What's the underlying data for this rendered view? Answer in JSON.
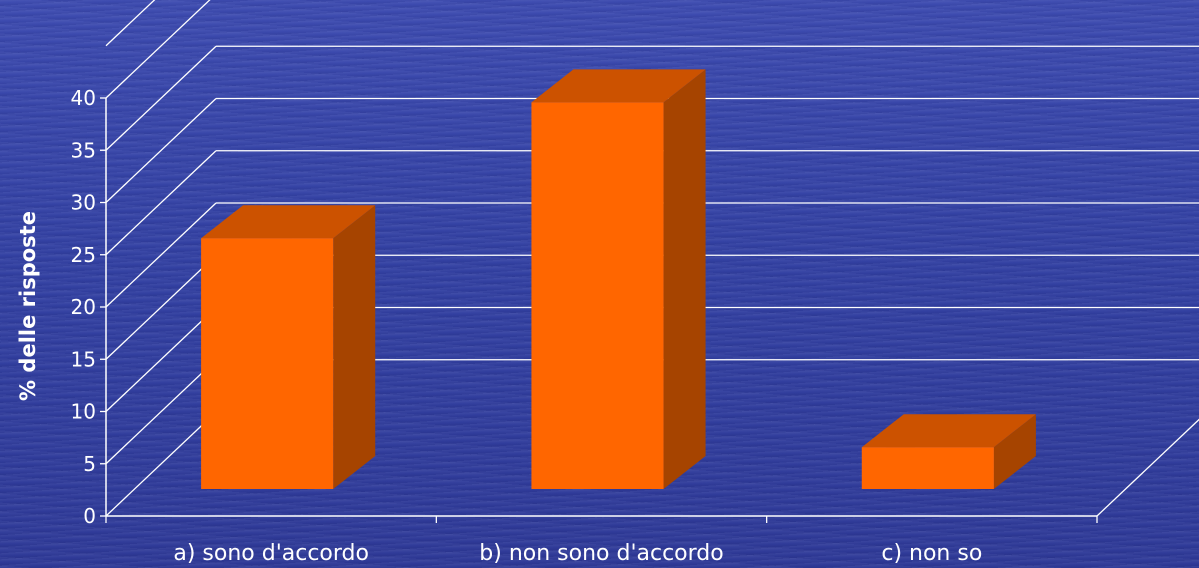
{
  "chart_data": {
    "type": "bar",
    "categories": [
      "a) sono d'accordo",
      "b) non sono d'accordo",
      "c) non so"
    ],
    "values": [
      24,
      37,
      4
    ],
    "ylabel": "% delle risposte",
    "xlabel": "",
    "ylim": [
      0,
      40
    ],
    "yticks": [
      "0",
      "5",
      "10",
      "15",
      "20",
      "25",
      "30",
      "35",
      "40"
    ],
    "grid": true,
    "three_d": true,
    "legend": "none"
  },
  "colors": {
    "bar_front": "#ff6600",
    "bar_top": "#cc5200",
    "bar_side": "#a64400",
    "grid": "#ffffff",
    "text": "#ffffff"
  }
}
